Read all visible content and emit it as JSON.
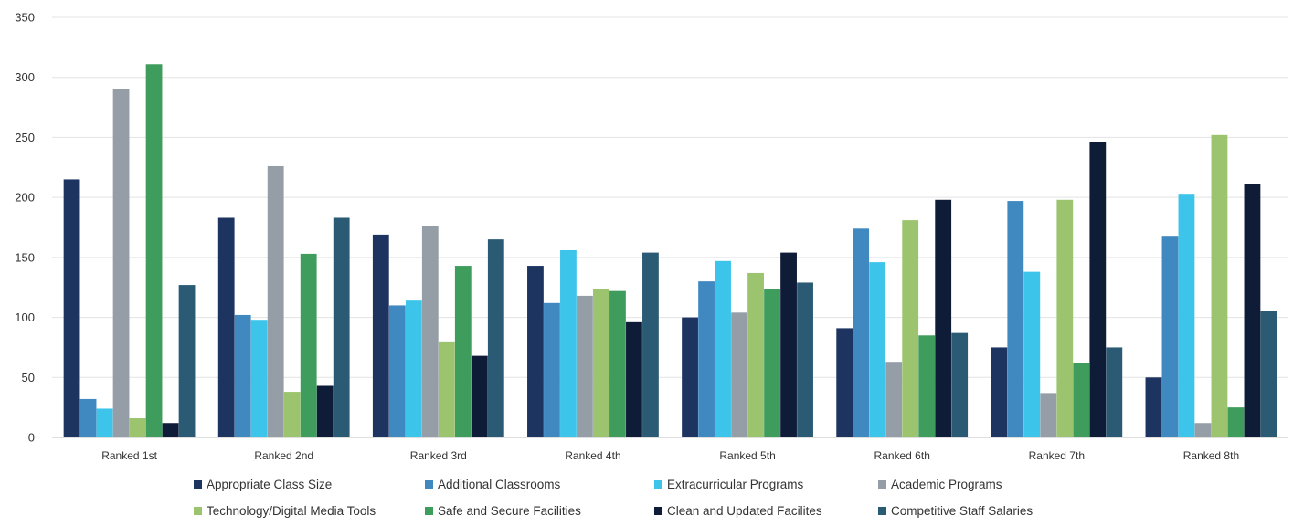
{
  "chart_data": {
    "type": "bar",
    "categories": [
      "Ranked 1st",
      "Ranked 2nd",
      "Ranked 3rd",
      "Ranked 4th",
      "Ranked 5th",
      "Ranked 6th",
      "Ranked 7th",
      "Ranked 8th"
    ],
    "ylim": [
      0,
      350
    ],
    "yticks": [
      0,
      50,
      100,
      150,
      200,
      250,
      300,
      350
    ],
    "grid": true,
    "legend_position": "bottom",
    "series": [
      {
        "name": "Appropriate Class Size",
        "color": "#1d3461",
        "values": [
          215,
          183,
          169,
          143,
          100,
          91,
          75,
          50
        ]
      },
      {
        "name": "Additional Classrooms",
        "color": "#3f88c0",
        "values": [
          32,
          102,
          110,
          112,
          130,
          174,
          197,
          168
        ]
      },
      {
        "name": "Extracurricular Programs",
        "color": "#3dc4ea",
        "values": [
          24,
          98,
          114,
          156,
          147,
          146,
          138,
          203
        ]
      },
      {
        "name": "Academic Programs",
        "color": "#959ea7",
        "values": [
          290,
          226,
          176,
          118,
          104,
          63,
          37,
          12
        ]
      },
      {
        "name": "Technology/Digital Media Tools",
        "color": "#9cc46e",
        "values": [
          16,
          38,
          80,
          124,
          137,
          181,
          198,
          252
        ]
      },
      {
        "name": "Safe and Secure Facilities",
        "color": "#3e9c5c",
        "values": [
          311,
          153,
          143,
          122,
          124,
          85,
          62,
          25
        ]
      },
      {
        "name": "Clean and Updated Facilites",
        "color": "#0f1c38",
        "values": [
          12,
          43,
          68,
          96,
          154,
          198,
          246,
          211
        ]
      },
      {
        "name": "Competitive Staff Salaries",
        "color": "#2a5a74",
        "values": [
          127,
          183,
          165,
          154,
          129,
          87,
          75,
          105
        ]
      }
    ]
  }
}
